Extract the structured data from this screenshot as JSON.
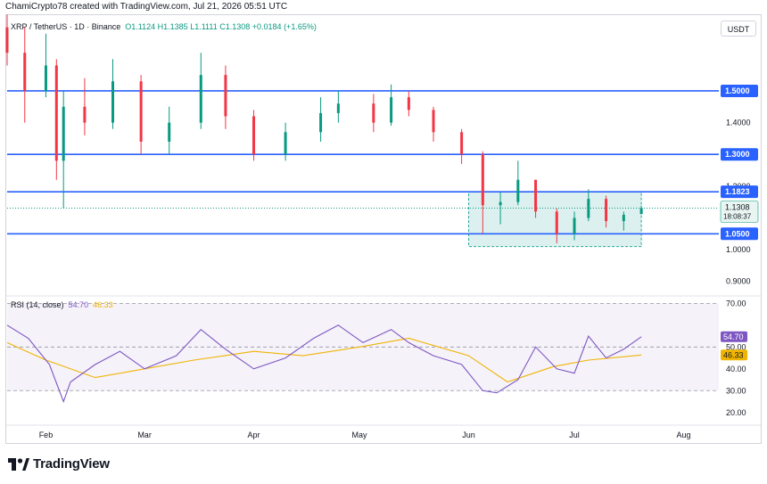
{
  "header": {
    "caption": "ChamiCrypto78 created with TradingView.com, Jul 21, 2026 05:51 UTC"
  },
  "legend": {
    "symbol": "XRP / TetherUS · 1D · Binance",
    "open": "O1.1124",
    "high": "H1.1385",
    "low": "L1.1111",
    "close": "C1.1308",
    "change": "+0.0184 (+1.65%)"
  },
  "currency_label": "USDT",
  "rsi_legend": {
    "label": "RSI (14, close)",
    "rsi_value": "54.70",
    "ma_value": "46.33"
  },
  "brand": {
    "name": "TradingView"
  },
  "colors": {
    "up": "#089981",
    "down": "#f23645",
    "hline": "#2962ff",
    "rsi": "#7e57c2",
    "rsi_ma": "#f0b400",
    "zone": "#26a69a"
  },
  "chart_data": [
    {
      "type": "candlestick",
      "title": "XRP / TetherUS · 1D · Binance",
      "x_ticks": [
        "Feb",
        "Mar",
        "Apr",
        "May",
        "Jun",
        "Jul",
        "Aug"
      ],
      "y_ticks": [
        "1.4000",
        "1.2000",
        "1.0000",
        "0.9000"
      ],
      "ylim": [
        0.86,
        1.73
      ],
      "hlines": [
        {
          "value": 1.5,
          "label": "1.5000"
        },
        {
          "value": 1.3,
          "label": "1.3000"
        },
        {
          "value": 1.1823,
          "label": "1.1823"
        },
        {
          "value": 1.05,
          "label": "1.0500"
        }
      ],
      "last_price": {
        "value": 1.1308,
        "label": "1.1308",
        "countdown": "18:08:37"
      },
      "range_box": {
        "start": "2026-06-01",
        "end": "2026-07-20",
        "top": 1.1823,
        "bottom": 1.0099
      },
      "ohlc_sampled": [
        {
          "date": "2026-01-21",
          "open": 1.7,
          "high": 1.74,
          "low": 1.58,
          "close": 1.62
        },
        {
          "date": "2026-01-26",
          "open": 1.62,
          "high": 1.7,
          "low": 1.4,
          "close": 1.5
        },
        {
          "date": "2026-02-01",
          "open": 1.5,
          "high": 1.68,
          "low": 1.48,
          "close": 1.58
        },
        {
          "date": "2026-02-04",
          "open": 1.58,
          "high": 1.6,
          "low": 1.22,
          "close": 1.28
        },
        {
          "date": "2026-02-06",
          "open": 1.28,
          "high": 1.5,
          "low": 1.13,
          "close": 1.45
        },
        {
          "date": "2026-02-12",
          "open": 1.45,
          "high": 1.54,
          "low": 1.36,
          "close": 1.4
        },
        {
          "date": "2026-02-20",
          "open": 1.4,
          "high": 1.6,
          "low": 1.38,
          "close": 1.53
        },
        {
          "date": "2026-02-28",
          "open": 1.53,
          "high": 1.55,
          "low": 1.3,
          "close": 1.34
        },
        {
          "date": "2026-03-08",
          "open": 1.34,
          "high": 1.45,
          "low": 1.3,
          "close": 1.4
        },
        {
          "date": "2026-03-17",
          "open": 1.4,
          "high": 1.62,
          "low": 1.38,
          "close": 1.55
        },
        {
          "date": "2026-03-24",
          "open": 1.55,
          "high": 1.58,
          "low": 1.38,
          "close": 1.42
        },
        {
          "date": "2026-04-01",
          "open": 1.42,
          "high": 1.44,
          "low": 1.28,
          "close": 1.3
        },
        {
          "date": "2026-04-10",
          "open": 1.3,
          "high": 1.4,
          "low": 1.28,
          "close": 1.37
        },
        {
          "date": "2026-04-20",
          "open": 1.37,
          "high": 1.48,
          "low": 1.34,
          "close": 1.43
        },
        {
          "date": "2026-04-25",
          "open": 1.43,
          "high": 1.5,
          "low": 1.4,
          "close": 1.46
        },
        {
          "date": "2026-05-05",
          "open": 1.46,
          "high": 1.49,
          "low": 1.37,
          "close": 1.4
        },
        {
          "date": "2026-05-10",
          "open": 1.4,
          "high": 1.52,
          "low": 1.39,
          "close": 1.48
        },
        {
          "date": "2026-05-15",
          "open": 1.48,
          "high": 1.5,
          "low": 1.42,
          "close": 1.44
        },
        {
          "date": "2026-05-22",
          "open": 1.44,
          "high": 1.45,
          "low": 1.34,
          "close": 1.37
        },
        {
          "date": "2026-05-30",
          "open": 1.37,
          "high": 1.38,
          "low": 1.27,
          "close": 1.3
        },
        {
          "date": "2026-06-05",
          "open": 1.3,
          "high": 1.31,
          "low": 1.05,
          "close": 1.14
        },
        {
          "date": "2026-06-10",
          "open": 1.14,
          "high": 1.18,
          "low": 1.08,
          "close": 1.15
        },
        {
          "date": "2026-06-15",
          "open": 1.15,
          "high": 1.28,
          "low": 1.14,
          "close": 1.22
        },
        {
          "date": "2026-06-20",
          "open": 1.22,
          "high": 1.22,
          "low": 1.1,
          "close": 1.12
        },
        {
          "date": "2026-06-26",
          "open": 1.12,
          "high": 1.13,
          "low": 1.02,
          "close": 1.05
        },
        {
          "date": "2026-07-01",
          "open": 1.05,
          "high": 1.12,
          "low": 1.03,
          "close": 1.1
        },
        {
          "date": "2026-07-05",
          "open": 1.1,
          "high": 1.19,
          "low": 1.09,
          "close": 1.16
        },
        {
          "date": "2026-07-10",
          "open": 1.16,
          "high": 1.17,
          "low": 1.07,
          "close": 1.09
        },
        {
          "date": "2026-07-15",
          "open": 1.09,
          "high": 1.12,
          "low": 1.06,
          "close": 1.11
        },
        {
          "date": "2026-07-20",
          "open": 1.1124,
          "high": 1.1385,
          "low": 1.1111,
          "close": 1.1308
        }
      ]
    },
    {
      "type": "line",
      "title": "RSI (14, close)",
      "y_ticks": [
        "70.00",
        "50.00",
        "40.00",
        "30.00",
        "20.00"
      ],
      "ylim": [
        15,
        73
      ],
      "bands": {
        "upper": 70,
        "middle": 50,
        "lower": 30
      },
      "last_values": {
        "rsi": "54.70",
        "ma": "46.33"
      },
      "series": [
        {
          "name": "RSI",
          "points": [
            [
              "2026-01-21",
              60
            ],
            [
              "2026-01-27",
              54
            ],
            [
              "2026-02-02",
              42
            ],
            [
              "2026-02-06",
              25
            ],
            [
              "2026-02-08",
              34
            ],
            [
              "2026-02-15",
              42
            ],
            [
              "2026-02-22",
              48
            ],
            [
              "2026-03-01",
              40
            ],
            [
              "2026-03-10",
              46
            ],
            [
              "2026-03-17",
              58
            ],
            [
              "2026-03-24",
              49
            ],
            [
              "2026-04-01",
              40
            ],
            [
              "2026-04-10",
              45
            ],
            [
              "2026-04-18",
              54
            ],
            [
              "2026-04-25",
              60
            ],
            [
              "2026-05-02",
              52
            ],
            [
              "2026-05-10",
              58
            ],
            [
              "2026-05-15",
              52
            ],
            [
              "2026-05-22",
              46
            ],
            [
              "2026-05-30",
              42
            ],
            [
              "2026-06-05",
              30
            ],
            [
              "2026-06-09",
              29
            ],
            [
              "2026-06-15",
              35
            ],
            [
              "2026-06-20",
              50
            ],
            [
              "2026-06-26",
              40
            ],
            [
              "2026-07-01",
              38
            ],
            [
              "2026-07-05",
              55
            ],
            [
              "2026-07-10",
              45
            ],
            [
              "2026-07-15",
              49
            ],
            [
              "2026-07-20",
              54.7
            ]
          ]
        },
        {
          "name": "RSI-based MA",
          "points": [
            [
              "2026-01-21",
              52
            ],
            [
              "2026-02-01",
              44
            ],
            [
              "2026-02-15",
              36
            ],
            [
              "2026-03-01",
              40
            ],
            [
              "2026-03-15",
              44
            ],
            [
              "2026-04-01",
              48
            ],
            [
              "2026-04-15",
              46
            ],
            [
              "2026-05-01",
              50
            ],
            [
              "2026-05-15",
              54
            ],
            [
              "2026-06-01",
              46
            ],
            [
              "2026-06-12",
              34
            ],
            [
              "2026-06-25",
              41
            ],
            [
              "2026-07-05",
              44
            ],
            [
              "2026-07-20",
              46.33
            ]
          ]
        }
      ]
    }
  ]
}
